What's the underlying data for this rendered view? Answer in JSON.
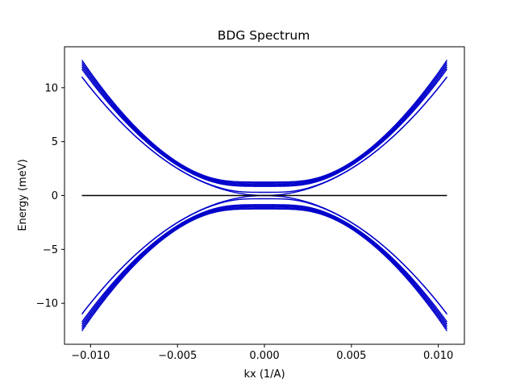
{
  "chart_data": {
    "type": "line",
    "title": "BDG Spectrum",
    "xlabel": "kx (1/A)",
    "ylabel": "Energy (meV)",
    "xlim": [
      -0.0115,
      0.0115
    ],
    "ylim": [
      -13.8,
      13.8
    ],
    "x_ticks": [
      -0.01,
      -0.005,
      0.0,
      0.005,
      0.01
    ],
    "x_tick_labels": [
      "−0.010",
      "−0.005",
      "0.000",
      "0.005",
      "0.010"
    ],
    "y_ticks": [
      -10,
      -5,
      0,
      5,
      10
    ],
    "y_tick_labels": [
      "−10",
      "−5",
      "0",
      "5",
      "10"
    ],
    "grid": false,
    "legend": "none",
    "band_color": "#0000cc",
    "zero_line_color": "#000000",
    "kx_range": [
      -0.0105,
      0.0105
    ],
    "series": [
      {
        "values_at_kx_edge": 12.5,
        "gap": 1.25
      },
      {
        "values_at_kx_edge": 12.3,
        "gap": 1.15
      },
      {
        "values_at_kx_edge": 12.1,
        "gap": 1.05
      },
      {
        "values_at_kx_edge": 11.9,
        "gap": 0.95
      },
      {
        "values_at_kx_edge": 11.7,
        "gap": 0.85
      },
      {
        "values_at_kx_edge": 11.0,
        "gap": 0.3
      },
      {
        "values_at_kx_edge": 11.0,
        "gap": 0.0
      }
    ],
    "zero_line": {
      "x": [
        -0.0105,
        0.0105
      ],
      "y": [
        0,
        0
      ]
    }
  }
}
